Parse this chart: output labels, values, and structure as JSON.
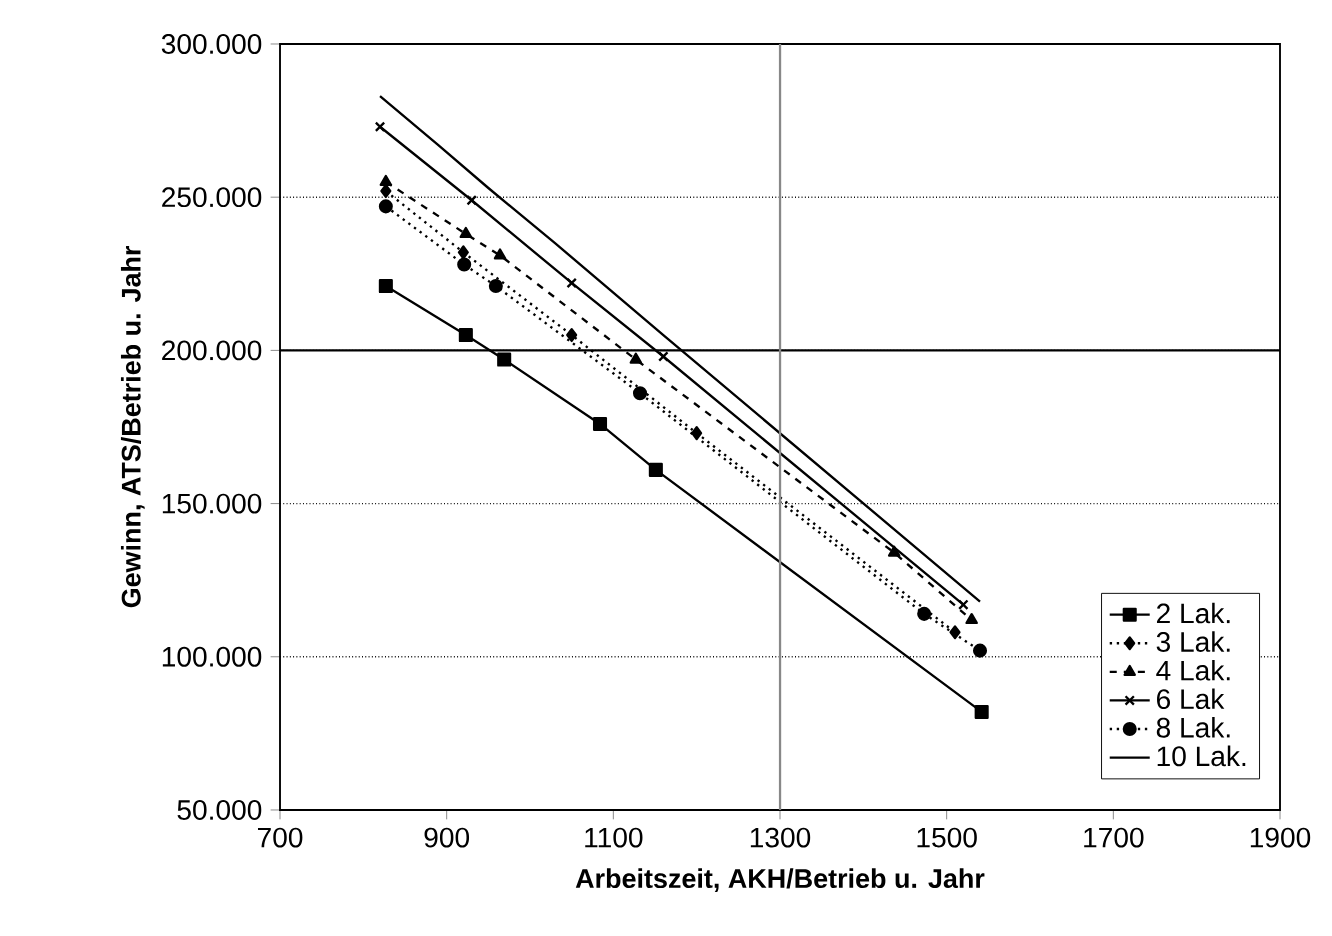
{
  "chart_data": {
    "type": "line",
    "xlabel": "Arbeitszeit, AKH/Betrieb u. Jahr",
    "ylabel": "Gewinn, ATS/Betrieb u. Jahr",
    "xlim": [
      700,
      1900
    ],
    "xticks": [
      700,
      900,
      1100,
      1300,
      1500,
      1700,
      1900
    ],
    "ylim": [
      50000,
      300000
    ],
    "yticks": [
      {
        "value": 50000,
        "label": "50.000"
      },
      {
        "value": 100000,
        "label": "100.000"
      },
      {
        "value": 150000,
        "label": "150.000"
      },
      {
        "value": 200000,
        "label": "200.000"
      },
      {
        "value": 250000,
        "label": "250.000"
      },
      {
        "value": 300000,
        "label": "300.000"
      }
    ],
    "grid": "y",
    "legend": "bottom right",
    "ref_lines": [
      {
        "axis": "y",
        "value": 200000,
        "color": "#000000",
        "line_style": "solid"
      },
      {
        "axis": "x",
        "value": 1300,
        "color": "#888888",
        "line_style": "solid"
      }
    ],
    "series": [
      {
        "name": "2 Lak.",
        "color": "#000000",
        "marker": "square",
        "line_style": "solid",
        "x": [
          827,
          923,
          969,
          1084,
          1151,
          1542
        ],
        "values": [
          221000,
          205000,
          197000,
          176000,
          161000,
          82000
        ]
      },
      {
        "name": "3 Lak.",
        "color": "#000000",
        "marker": "diamond",
        "line_style": "dotted",
        "x": [
          827,
          920,
          1050,
          1200,
          1510
        ],
        "values": [
          252000,
          232000,
          205000,
          173000,
          108000
        ]
      },
      {
        "name": "4 Lak.",
        "color": "#000000",
        "marker": "triangle",
        "line_style": "dashed",
        "x": [
          827,
          923,
          964,
          1127,
          1437,
          1530
        ],
        "values": [
          255000,
          238000,
          231000,
          197000,
          134000,
          112000
        ]
      },
      {
        "name": "6 Lak",
        "color": "#000000",
        "marker": "cross",
        "line_style": "solid",
        "x": [
          820,
          930,
          1050,
          1160,
          1520
        ],
        "values": [
          273000,
          249000,
          222000,
          198000,
          117000
        ]
      },
      {
        "name": "8 Lak.",
        "color": "#000000",
        "marker": "circle",
        "line_style": "dotted",
        "x": [
          827,
          921,
          959,
          1132,
          1473,
          1540
        ],
        "values": [
          247000,
          228000,
          221000,
          186000,
          114000,
          102000
        ]
      },
      {
        "name": "10 Lak.",
        "color": "#000000",
        "marker": "none",
        "line_style": "solid",
        "x": [
          820,
          890,
          950,
          1030,
          1160,
          1540
        ],
        "values": [
          283000,
          267000,
          253000,
          235000,
          205000,
          118000
        ]
      }
    ]
  }
}
